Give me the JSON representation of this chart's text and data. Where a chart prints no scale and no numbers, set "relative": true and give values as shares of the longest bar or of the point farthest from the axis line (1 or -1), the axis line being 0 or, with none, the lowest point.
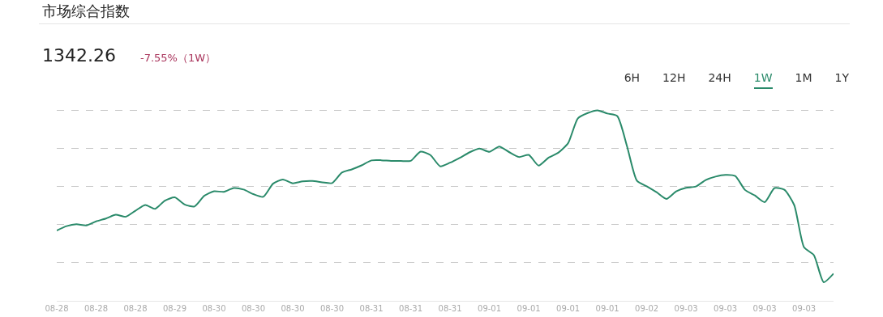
{
  "chart_data": {
    "type": "line",
    "title": "市场综合指数",
    "relative": true,
    "grid": "y",
    "marker": "none",
    "line_style": "solid",
    "annotations": [
      "1342.26",
      "-7.55%（1W）",
      "6H",
      "12H",
      "24H",
      "1W",
      "1M",
      "1Y"
    ],
    "categories": [
      "08-28",
      null,
      null,
      null,
      "08-28",
      null,
      null,
      null,
      "08-28",
      null,
      null,
      null,
      "08-29",
      null,
      null,
      null,
      "08-30",
      null,
      null,
      null,
      "08-30",
      null,
      null,
      null,
      "08-30",
      null,
      null,
      null,
      "08-30",
      null,
      null,
      null,
      "08-31",
      null,
      null,
      null,
      "08-31",
      null,
      null,
      null,
      "08-31",
      null,
      null,
      null,
      "09-01",
      null,
      null,
      null,
      "09-01",
      null,
      null,
      null,
      "09-01",
      null,
      null,
      null,
      "09-01",
      null,
      null,
      null,
      "09-02",
      null,
      null,
      null,
      "09-03",
      null,
      null,
      null,
      "09-03",
      null,
      null,
      null,
      "09-03",
      null,
      null,
      null,
      "09-03",
      null,
      null,
      null
    ],
    "series": [
      {
        "color": "#2a8a6a",
        "values": [
          0.369,
          0.392,
          0.402,
          0.396,
          0.417,
          0.432,
          0.452,
          0.441,
          0.473,
          0.503,
          0.483,
          0.526,
          0.543,
          0.506,
          0.495,
          0.551,
          0.575,
          0.572,
          0.592,
          0.584,
          0.56,
          0.546,
          0.615,
          0.637,
          0.617,
          0.627,
          0.629,
          0.622,
          0.618,
          0.673,
          0.69,
          0.711,
          0.737,
          0.738,
          0.734,
          0.734,
          0.735,
          0.783,
          0.765,
          0.706,
          0.725,
          0.751,
          0.78,
          0.799,
          0.782,
          0.81,
          0.781,
          0.755,
          0.766,
          0.71,
          0.751,
          0.777,
          0.827,
          0.958,
          0.986,
          1.0,
          0.983,
          0.97,
          0.811,
          0.631,
          0.601,
          0.57,
          0.535,
          0.575,
          0.593,
          0.6,
          0.634,
          0.652,
          0.661,
          0.655,
          0.582,
          0.553,
          0.518,
          0.592,
          0.583,
          0.503,
          0.281,
          0.24,
          0.098,
          0.143
        ]
      }
    ]
  }
}
